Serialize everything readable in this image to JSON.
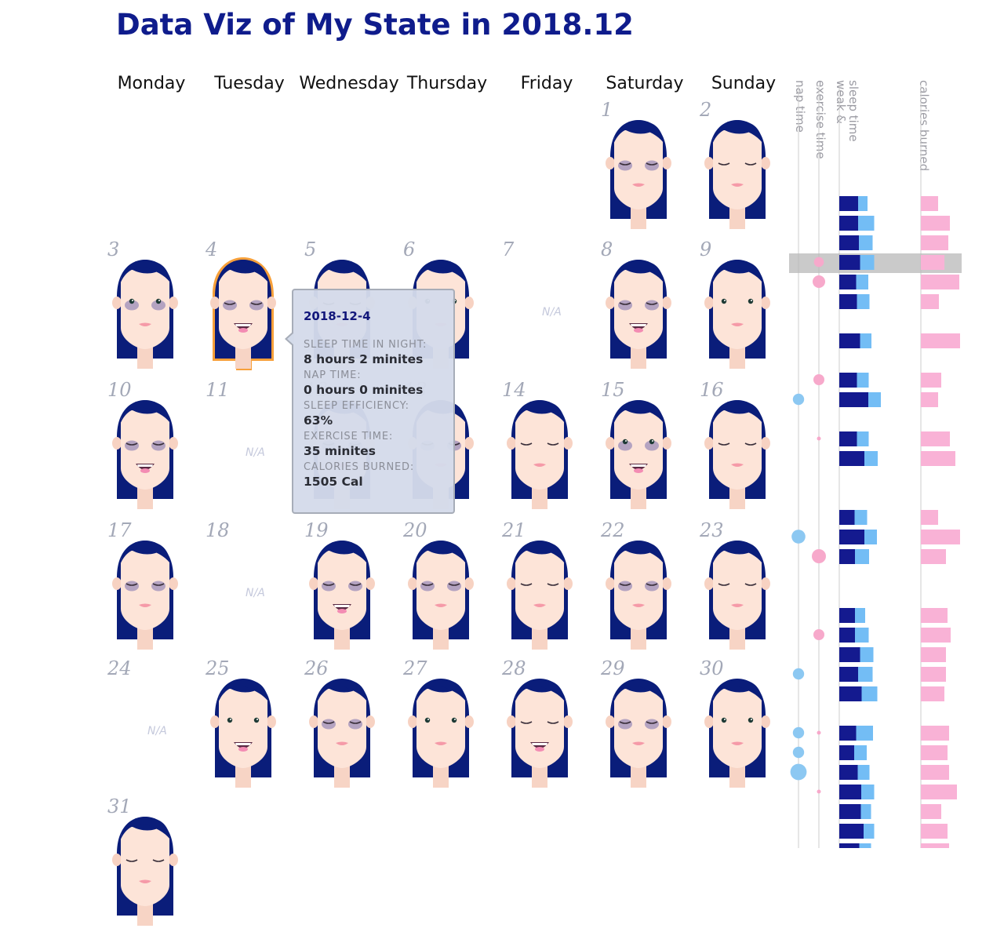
{
  "title": "Data Viz of My State in 2018.12",
  "weekdays": [
    "Monday",
    "Tuesday",
    "Wednesday",
    "Thursday",
    "Friday",
    "Saturday",
    "Sunday"
  ],
  "na_label": "N/A",
  "column_headers": {
    "nap": "nap time",
    "exercise": "exercise time",
    "sleep": [
      "weak &",
      "sleep time"
    ],
    "calories": "calories burned"
  },
  "days": [
    {
      "n": 1,
      "present": true,
      "mouth": "closed",
      "eyes": "closed",
      "bags": true
    },
    {
      "n": 2,
      "present": true,
      "mouth": "closed",
      "eyes": "closed",
      "bags": false
    },
    {
      "n": 3,
      "present": true,
      "mouth": "closed",
      "eyes": "open",
      "bags": true
    },
    {
      "n": 4,
      "present": true,
      "mouth": "smile",
      "eyes": "closed",
      "bags": true,
      "highlighted": true
    },
    {
      "n": 5,
      "present": true,
      "mouth": "closed",
      "eyes": "closed",
      "bags": false
    },
    {
      "n": 6,
      "present": true,
      "mouth": "closed",
      "eyes": "open",
      "bags": false
    },
    {
      "n": 7,
      "present": false
    },
    {
      "n": 8,
      "present": true,
      "mouth": "smile",
      "eyes": "closed",
      "bags": true
    },
    {
      "n": 9,
      "present": true,
      "mouth": "closed",
      "eyes": "open",
      "bags": false
    },
    {
      "n": 10,
      "present": true,
      "mouth": "smile",
      "eyes": "closed",
      "bags": true
    },
    {
      "n": 11,
      "present": false
    },
    {
      "n": 12,
      "present": true,
      "mouth": "closed",
      "eyes": "closed",
      "bags": true
    },
    {
      "n": 13,
      "present": true,
      "mouth": "closed",
      "eyes": "closed",
      "bags": true
    },
    {
      "n": 14,
      "present": true,
      "mouth": "closed",
      "eyes": "closed",
      "bags": false
    },
    {
      "n": 15,
      "present": true,
      "mouth": "smile",
      "eyes": "open",
      "bags": true
    },
    {
      "n": 16,
      "present": true,
      "mouth": "closed",
      "eyes": "closed",
      "bags": false
    },
    {
      "n": 17,
      "present": true,
      "mouth": "closed",
      "eyes": "closed",
      "bags": true
    },
    {
      "n": 18,
      "present": false
    },
    {
      "n": 19,
      "present": true,
      "mouth": "smile",
      "eyes": "closed",
      "bags": true
    },
    {
      "n": 20,
      "present": true,
      "mouth": "closed",
      "eyes": "closed",
      "bags": true
    },
    {
      "n": 21,
      "present": true,
      "mouth": "closed",
      "eyes": "closed",
      "bags": false
    },
    {
      "n": 22,
      "present": true,
      "mouth": "closed",
      "eyes": "closed",
      "bags": true
    },
    {
      "n": 23,
      "present": true,
      "mouth": "closed",
      "eyes": "closed",
      "bags": false
    },
    {
      "n": 24,
      "present": false
    },
    {
      "n": 25,
      "present": true,
      "mouth": "smile",
      "eyes": "open",
      "bags": false
    },
    {
      "n": 26,
      "present": true,
      "mouth": "closed",
      "eyes": "closed",
      "bags": true
    },
    {
      "n": 27,
      "present": true,
      "mouth": "closed",
      "eyes": "open",
      "bags": false
    },
    {
      "n": 28,
      "present": true,
      "mouth": "smile",
      "eyes": "closed",
      "bags": false
    },
    {
      "n": 29,
      "present": true,
      "mouth": "closed",
      "eyes": "closed",
      "bags": true
    },
    {
      "n": 30,
      "present": true,
      "mouth": "closed",
      "eyes": "open",
      "bags": false
    },
    {
      "n": 31,
      "present": true,
      "mouth": "closed",
      "eyes": "closed",
      "bags": false
    }
  ],
  "tooltip": {
    "date": "2018-12-4",
    "sleep_label": "SLEEP TIME IN NIGHT:",
    "sleep_value": "8 hours 2 minites",
    "nap_label": "NAP TIME:",
    "nap_value": "0 hours 0 minites",
    "efficiency_label": "SLEEP EFFICIENCY:",
    "efficiency_value": "63%",
    "exercise_label": "EXERCISE TIME:",
    "exercise_value": "35 minites",
    "calories_label": "CALORIES BURNED:",
    "calories_value": "1505 Cal"
  },
  "colors": {
    "title": "#0f1c8c",
    "hair": "#0a1d7a",
    "skin": "#fde4d8",
    "sleep_bar": "#141a8f",
    "awake_bar": "#73bdf5",
    "nap_dot": "#8cc8f2",
    "exercise_dot": "#f7a9cb",
    "calories_bar": "#f9b2d6",
    "highlight_border": "#f7a03a"
  },
  "chart_data": {
    "type": "bar",
    "categories": [
      "1",
      "2",
      "3",
      "4",
      "5",
      "6",
      "7",
      "8",
      "9",
      "10",
      "11",
      "12",
      "13",
      "14",
      "15",
      "16",
      "17",
      "18",
      "19",
      "20",
      "21",
      "22",
      "23",
      "24",
      "25",
      "26",
      "27",
      "28",
      "29",
      "30",
      "31"
    ],
    "series": [
      {
        "name": "sleep time",
        "values": [
          4.8,
          4.8,
          5.0,
          5.3,
          4.3,
          4.5,
          null,
          5.3,
          4.5,
          7.4,
          null,
          4.5,
          6.4,
          3.9,
          6.4,
          4.0,
          null,
          null,
          4.0,
          4.0,
          5.3,
          4.8,
          5.7,
          null,
          4.3,
          3.8,
          4.7,
          5.6,
          5.5,
          6.2,
          5.1
        ]
      },
      {
        "name": "weak",
        "values": [
          2.4,
          4.1,
          3.5,
          3.6,
          3.1,
          3.2,
          null,
          2.9,
          3.0,
          3.2,
          null,
          3.0,
          3.4,
          3.2,
          3.2,
          3.6,
          null,
          null,
          2.6,
          3.5,
          3.4,
          3.7,
          4.0,
          null,
          4.3,
          3.2,
          3.0,
          3.3,
          2.6,
          2.7,
          3.0
        ]
      },
      {
        "name": "nap time",
        "values": [
          0,
          0,
          0,
          0,
          0,
          0,
          null,
          0,
          0,
          0.4,
          null,
          0,
          0,
          0,
          0.6,
          0,
          null,
          null,
          0,
          0,
          0,
          0.4,
          0,
          null,
          0.4,
          0.4,
          0.8,
          0,
          0,
          0,
          0
        ]
      },
      {
        "name": "exercise time",
        "values": [
          0,
          0,
          0,
          35,
          60,
          0,
          null,
          0,
          45,
          0,
          null,
          0.3,
          0,
          0,
          0,
          75,
          null,
          null,
          0,
          45,
          0,
          0,
          0,
          null,
          0.3,
          0,
          0,
          0.3,
          0,
          0,
          0
        ]
      },
      {
        "name": "calories burned",
        "values": [
          1100,
          1850,
          1750,
          1505,
          2450,
          1150,
          null,
          2500,
          1300,
          1100,
          null,
          1850,
          2200,
          1100,
          2500,
          1600,
          null,
          null,
          1700,
          1900,
          1600,
          1600,
          1500,
          null,
          1800,
          1700,
          1800,
          2300,
          1300,
          1700,
          1800
        ]
      }
    ]
  }
}
